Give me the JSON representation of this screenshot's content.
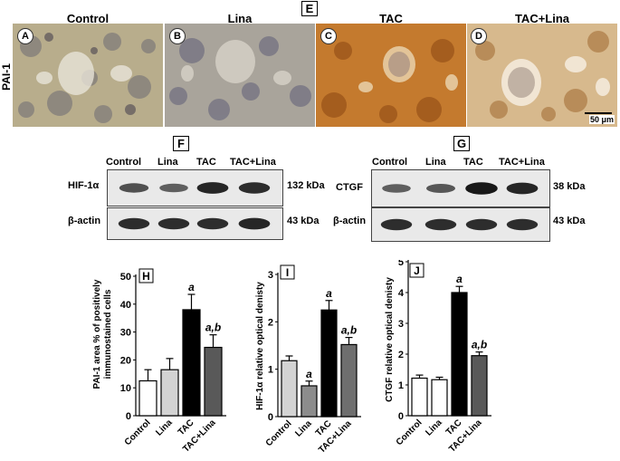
{
  "panel_e": {
    "letter": "E",
    "row_label": "PAI-1",
    "scale_bar": "50 μm",
    "images": [
      {
        "title": "Control",
        "letter": "A"
      },
      {
        "title": "Lina",
        "letter": "B"
      },
      {
        "title": "TAC",
        "letter": "C"
      },
      {
        "title": "TAC+Lina",
        "letter": "D"
      }
    ]
  },
  "panel_f": {
    "letter": "F",
    "lanes": [
      "Control",
      "Lina",
      "TAC",
      "TAC+Lina"
    ],
    "rows": [
      {
        "protein": "HIF-1α",
        "size": "132 kDa",
        "band_intensity": [
          0.55,
          0.45,
          0.85,
          0.8
        ]
      },
      {
        "protein": "β-actin",
        "size": "43 kDa",
        "band_intensity": [
          0.8,
          0.8,
          0.8,
          0.85
        ]
      }
    ]
  },
  "panel_g": {
    "letter": "G",
    "lanes": [
      "Control",
      "Lina",
      "TAC",
      "TAC+Lina"
    ],
    "rows": [
      {
        "protein": "CTGF",
        "size": "38 kDa",
        "band_intensity": [
          0.45,
          0.5,
          0.95,
          0.85
        ]
      },
      {
        "protein": "β-actin",
        "size": "43 kDa",
        "band_intensity": [
          0.8,
          0.8,
          0.8,
          0.8
        ]
      }
    ]
  },
  "chart_data": [
    {
      "type": "bar",
      "panel": "H",
      "ylabel": "PAI-1 area % of positively immunostained cells",
      "categories": [
        "Control",
        "Lina",
        "TAC",
        "TAC+Lina"
      ],
      "values": [
        12.5,
        16.5,
        38,
        24.5
      ],
      "errors": [
        4,
        4,
        5.5,
        4.5
      ],
      "annotations": [
        "",
        "",
        "a",
        "a,b"
      ],
      "colors": [
        "#ffffff",
        "#d3d3d3",
        "#000000",
        "#595959"
      ],
      "ylim": [
        0,
        50
      ],
      "yticks": [
        0,
        10,
        20,
        30,
        40,
        50
      ]
    },
    {
      "type": "bar",
      "panel": "I",
      "ylabel": "HIF-1α relative optical denisty",
      "categories": [
        "Control",
        "Lina",
        "TAC",
        "TAC+Lina"
      ],
      "values": [
        1.18,
        0.65,
        2.25,
        1.52
      ],
      "errors": [
        0.1,
        0.1,
        0.2,
        0.15
      ],
      "annotations": [
        "",
        "a",
        "a",
        "a,b"
      ],
      "colors": [
        "#d3d3d3",
        "#8c8c8c",
        "#000000",
        "#6e6e6e"
      ],
      "ylim": [
        0,
        3
      ],
      "yticks": [
        0,
        1,
        2,
        3
      ]
    },
    {
      "type": "bar",
      "panel": "J",
      "ylabel": "CTGF relative optical denisty",
      "categories": [
        "Control",
        "Lina",
        "TAC",
        "TAC+Lina"
      ],
      "values": [
        1.22,
        1.17,
        4.0,
        1.95
      ],
      "errors": [
        0.1,
        0.08,
        0.2,
        0.12
      ],
      "annotations": [
        "",
        "",
        "a",
        "a,b"
      ],
      "colors": [
        "#ffffff",
        "#ffffff",
        "#000000",
        "#595959"
      ],
      "ylim": [
        0,
        5
      ],
      "yticks": [
        0,
        1,
        2,
        3,
        4,
        5
      ]
    }
  ]
}
